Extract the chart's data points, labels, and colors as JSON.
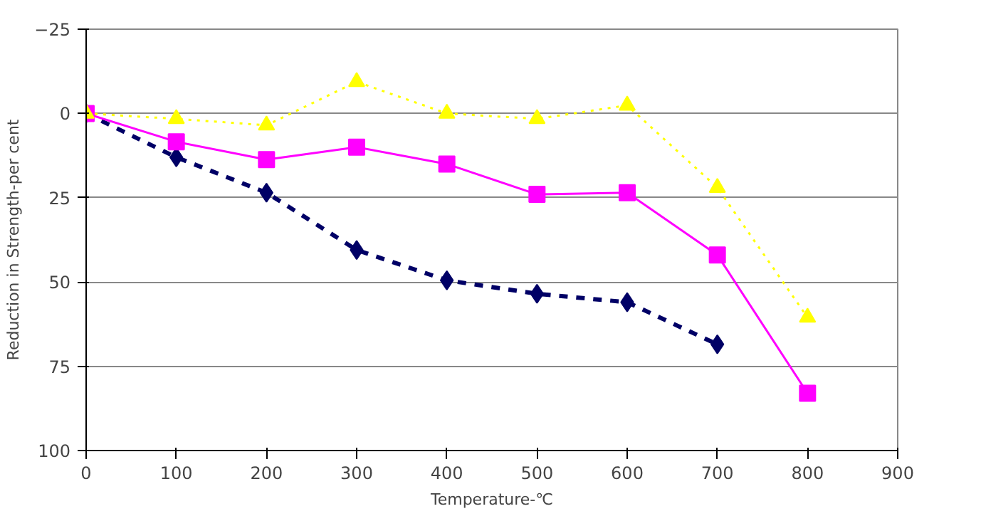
{
  "chart_data": {
    "type": "line",
    "xlabel": "Temperature-℃",
    "ylabel": "Reduction in Strength-per cent",
    "xlim": [
      0,
      900
    ],
    "xticks": [
      0,
      100,
      200,
      300,
      400,
      500,
      600,
      700,
      800,
      900
    ],
    "ylim": [
      100,
      -25
    ],
    "yticks": [
      -25,
      0,
      25,
      50,
      75,
      100
    ],
    "grid": "y",
    "series": [
      {
        "color": "#000066",
        "marker": "diamond",
        "line_style": "dashed",
        "x": [
          0,
          100,
          200,
          300,
          400,
          500,
          600,
          700
        ],
        "values": [
          0,
          13,
          23.5,
          40.5,
          49.5,
          53.5,
          56,
          68.5
        ]
      },
      {
        "color": "#ff00ff",
        "marker": "square",
        "line_style": "solid",
        "x": [
          0,
          100,
          200,
          300,
          400,
          500,
          600,
          700,
          800
        ],
        "values": [
          0,
          8.4,
          13.7,
          10,
          15,
          24,
          23.5,
          42,
          83
        ]
      },
      {
        "color": "#ffff00",
        "marker": "triangle",
        "line_style": "dotted",
        "x": [
          0,
          100,
          200,
          300,
          400,
          500,
          600,
          700,
          800
        ],
        "values": [
          0,
          1.6,
          3.5,
          -9.4,
          0,
          1.6,
          -2.4,
          22,
          60.5
        ]
      }
    ]
  }
}
